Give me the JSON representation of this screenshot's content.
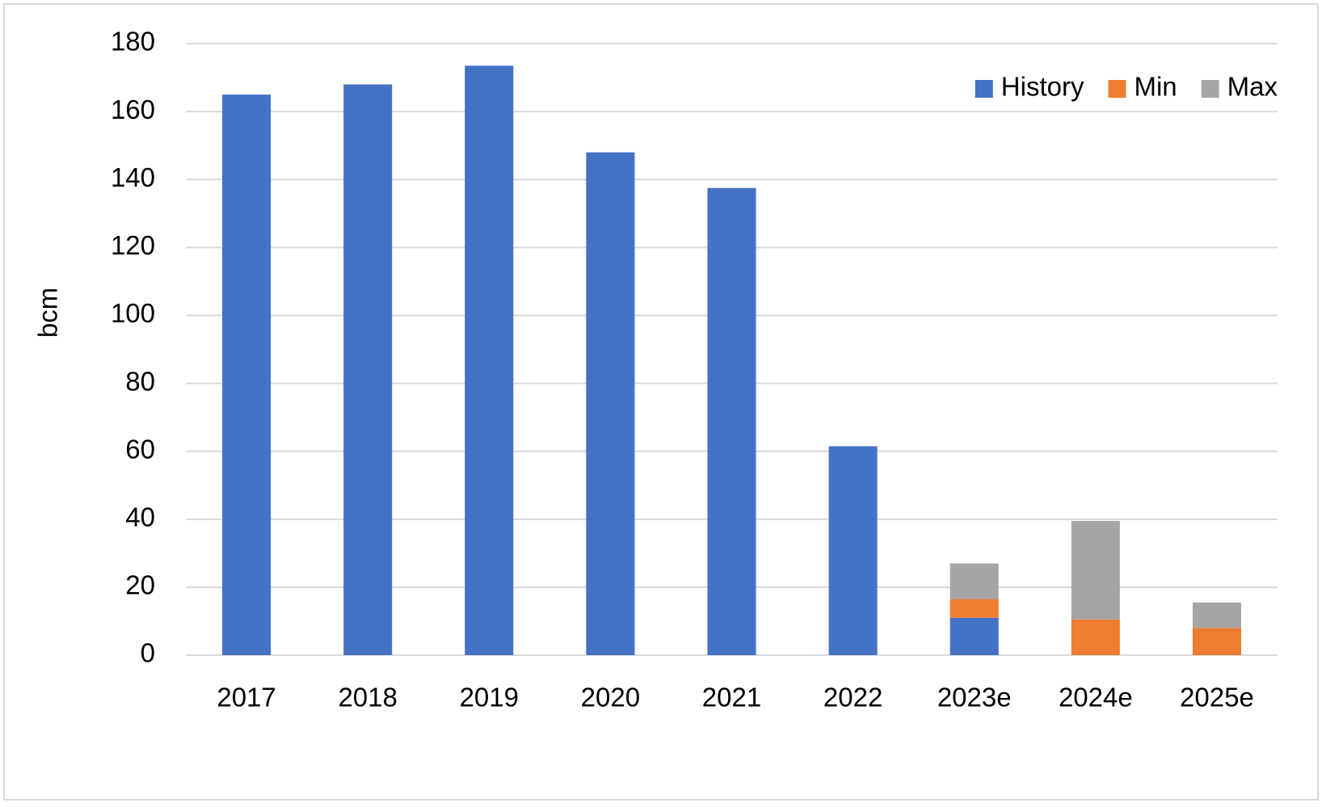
{
  "chart_data": {
    "type": "stacked_bar",
    "y_label": "bcm",
    "categories": [
      "2017",
      "2018",
      "2019",
      "2020",
      "2021",
      "2022",
      "2023e",
      "2024e",
      "2025e"
    ],
    "series": [
      {
        "name": "History",
        "color": "#4472c4",
        "values": [
          165,
          168,
          173.5,
          148,
          137.5,
          61.5,
          11,
          null,
          null
        ]
      },
      {
        "name": "Min",
        "color": "#ed7d31",
        "values": [
          null,
          null,
          null,
          null,
          null,
          null,
          5.5,
          10.5,
          8
        ]
      },
      {
        "name": "Max",
        "color": "#a5a5a5",
        "values": [
          null,
          null,
          null,
          null,
          null,
          null,
          10.5,
          29,
          7.5
        ]
      }
    ],
    "ylim": [
      0,
      180
    ],
    "yticks": [
      0,
      20,
      40,
      60,
      80,
      100,
      120,
      140,
      160,
      180
    ],
    "grid": true,
    "legend": "top-right"
  }
}
